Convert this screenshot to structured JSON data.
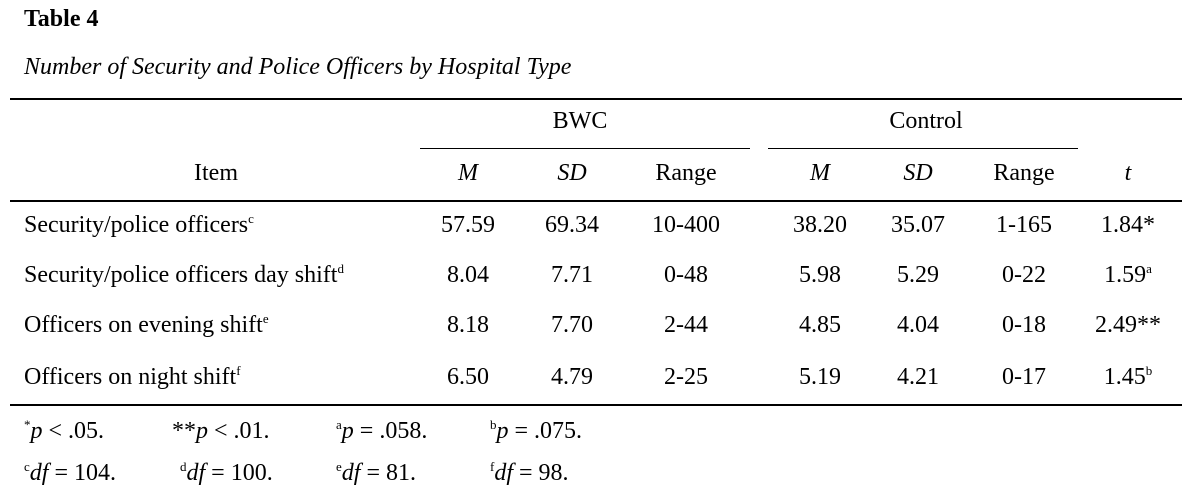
{
  "table": {
    "label": "Table 4",
    "caption": "Number of Security and Police Officers by Hospital Type",
    "group_headers": [
      "BWC",
      "Control"
    ],
    "item_header": "Item",
    "sub_headers": [
      "M",
      "SD",
      "Range",
      "M",
      "SD",
      "Range"
    ],
    "t_header": "t",
    "rows": [
      {
        "item": "Security/police  officers",
        "sup": "c",
        "values": [
          "57.59",
          "69.34",
          "10-400",
          "38.20",
          "35.07",
          "1-165"
        ],
        "t": "1.84*",
        "t_sup": ""
      },
      {
        "item": "Security/police  officers day shift",
        "sup": "d",
        "values": [
          "8.04",
          "7.71",
          "0-48",
          "5.98",
          "5.29",
          "0-22"
        ],
        "t": "1.59",
        "t_sup": "a"
      },
      {
        "item": "Officers on evening shift",
        "sup": "e",
        "values": [
          "8.18",
          "7.70",
          "2-44",
          "4.85",
          "4.04",
          "0-18"
        ],
        "t": "2.49**",
        "t_sup": ""
      },
      {
        "item": "Officers on night shift",
        "sup": "f",
        "values": [
          "6.50",
          "4.79",
          "2-25",
          "5.19",
          "4.21",
          "0-17"
        ],
        "t": "1.45",
        "t_sup": "b"
      }
    ]
  },
  "footnotes": {
    "line1": [
      {
        "pre": "*",
        "italic": "p",
        "rest": " < .05."
      },
      {
        "pre": "**",
        "italic": "p",
        "rest": " < .01."
      },
      {
        "pre": "a",
        "italic": "p",
        "rest": " = .058."
      },
      {
        "pre": "b",
        "italic": "p",
        "rest": " = .075."
      }
    ],
    "line2": [
      {
        "pre": "c",
        "italic": "df",
        "rest": " = 104."
      },
      {
        "pre": "d",
        "italic": "df",
        "rest": " = 100."
      },
      {
        "pre": "e",
        "italic": "df",
        "rest": " = 81."
      },
      {
        "pre": "f",
        "italic": "df",
        "rest": " = 98."
      }
    ]
  }
}
